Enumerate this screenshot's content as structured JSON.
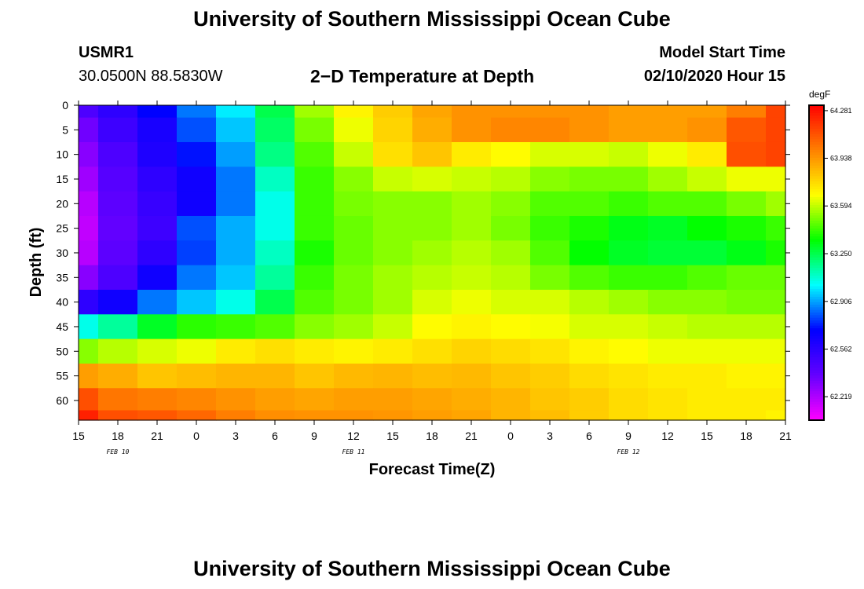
{
  "header": {
    "title_top": "University of Southern Mississippi Ocean Cube",
    "title_bottom": "University of Southern Mississippi Ocean Cube",
    "station_id": "USMR1",
    "station_coords": "30.0500N 88.5830W",
    "plot_title": "2−D Temperature at Depth",
    "model_start_label": "Model Start Time",
    "model_start_value": "02/10/2020 Hour 15"
  },
  "chart_data": {
    "type": "heatmap",
    "title": "2−D Temperature at Depth",
    "xlabel": "Forecast Time(Z)",
    "ylabel": "Depth (ft)",
    "x_tick_labels": [
      "15",
      "18",
      "21",
      "0",
      "3",
      "6",
      "9",
      "12",
      "15",
      "18",
      "21",
      "0",
      "3",
      "6",
      "9",
      "12",
      "15",
      "18",
      "21"
    ],
    "x_date_labels": [
      {
        "label": "FEB 10",
        "at_tick": 1
      },
      {
        "label": "FEB 11",
        "at_tick": 7
      },
      {
        "label": "FEB 12",
        "at_tick": 14
      }
    ],
    "x_range_hours": [
      0,
      54
    ],
    "y_ticks": [
      0,
      5,
      10,
      15,
      20,
      25,
      30,
      35,
      40,
      45,
      50,
      55,
      60
    ],
    "y_range_ft": [
      0,
      64
    ],
    "y_reversed": true,
    "colorbar": {
      "unit": "degF",
      "ticks": [
        62.219,
        62.562,
        62.906,
        63.25,
        63.594,
        63.938,
        64.281
      ],
      "min": 62.05,
      "max": 64.32
    },
    "grid_x_hours": [
      0,
      3,
      6,
      9,
      12,
      15,
      18,
      21,
      24,
      27,
      30,
      33,
      36,
      39,
      42,
      45,
      48,
      51,
      54
    ],
    "grid_depth_ft": [
      0,
      5,
      10,
      15,
      20,
      25,
      30,
      35,
      40,
      45,
      50,
      55,
      60,
      64
    ],
    "values_degF": [
      [
        62.45,
        62.55,
        62.7,
        62.85,
        63.0,
        63.25,
        63.55,
        63.7,
        63.8,
        63.9,
        63.95,
        63.95,
        63.95,
        63.95,
        63.92,
        63.92,
        63.92,
        64.0,
        64.15
      ],
      [
        62.35,
        62.5,
        62.62,
        62.8,
        62.95,
        63.22,
        63.5,
        63.65,
        63.78,
        63.88,
        63.95,
        63.98,
        63.98,
        63.95,
        63.92,
        63.92,
        63.95,
        64.1,
        64.15
      ],
      [
        62.3,
        62.45,
        62.6,
        62.72,
        62.9,
        63.18,
        63.45,
        63.6,
        63.75,
        63.82,
        63.72,
        63.68,
        63.62,
        63.62,
        63.6,
        63.65,
        63.72,
        64.12,
        64.15
      ],
      [
        62.25,
        62.42,
        62.55,
        62.65,
        62.85,
        63.1,
        63.42,
        63.52,
        63.6,
        63.62,
        63.6,
        63.58,
        63.52,
        63.5,
        63.5,
        63.55,
        63.6,
        63.65,
        63.65
      ],
      [
        62.2,
        62.4,
        62.52,
        62.65,
        62.85,
        63.05,
        63.42,
        63.5,
        63.52,
        63.52,
        63.55,
        63.52,
        63.45,
        63.45,
        63.42,
        63.45,
        63.45,
        63.5,
        63.55
      ],
      [
        62.18,
        62.38,
        62.5,
        62.8,
        62.92,
        63.05,
        63.42,
        63.48,
        63.52,
        63.52,
        63.55,
        63.5,
        63.42,
        63.38,
        63.32,
        63.3,
        63.35,
        63.38,
        63.42
      ],
      [
        62.2,
        62.4,
        62.55,
        62.78,
        62.92,
        63.1,
        63.38,
        63.48,
        63.52,
        63.55,
        63.58,
        63.55,
        63.45,
        63.35,
        63.3,
        63.28,
        63.28,
        63.32,
        63.38
      ],
      [
        62.3,
        62.45,
        62.65,
        62.85,
        62.95,
        63.15,
        63.42,
        63.5,
        63.55,
        63.58,
        63.6,
        63.58,
        63.5,
        63.45,
        63.42,
        63.42,
        63.45,
        63.48,
        63.48
      ],
      [
        62.55,
        62.65,
        62.85,
        62.95,
        63.05,
        63.25,
        63.45,
        63.5,
        63.55,
        63.62,
        63.65,
        63.62,
        63.62,
        63.58,
        63.55,
        63.52,
        63.52,
        63.5,
        63.5
      ],
      [
        63.05,
        63.15,
        63.3,
        63.4,
        63.42,
        63.45,
        63.52,
        63.55,
        63.6,
        63.68,
        63.7,
        63.68,
        63.66,
        63.62,
        63.62,
        63.6,
        63.58,
        63.58,
        63.58
      ],
      [
        63.52,
        63.58,
        63.62,
        63.65,
        63.72,
        63.75,
        63.72,
        63.7,
        63.72,
        63.75,
        63.78,
        63.76,
        63.74,
        63.7,
        63.68,
        63.65,
        63.65,
        63.65,
        63.65
      ],
      [
        63.92,
        63.88,
        63.82,
        63.84,
        63.86,
        63.86,
        63.82,
        63.85,
        63.86,
        63.84,
        63.85,
        63.82,
        63.8,
        63.76,
        63.74,
        63.72,
        63.72,
        63.7,
        63.7
      ],
      [
        64.12,
        64.02,
        64.0,
        63.98,
        63.95,
        63.92,
        63.9,
        63.92,
        63.92,
        63.9,
        63.88,
        63.86,
        63.82,
        63.8,
        63.76,
        63.74,
        63.72,
        63.72,
        63.72
      ],
      [
        64.24,
        64.12,
        64.1,
        64.06,
        64.0,
        63.96,
        63.95,
        63.95,
        63.94,
        63.92,
        63.9,
        63.86,
        63.84,
        63.8,
        63.76,
        63.74,
        63.72,
        63.72,
        63.7
      ]
    ]
  }
}
